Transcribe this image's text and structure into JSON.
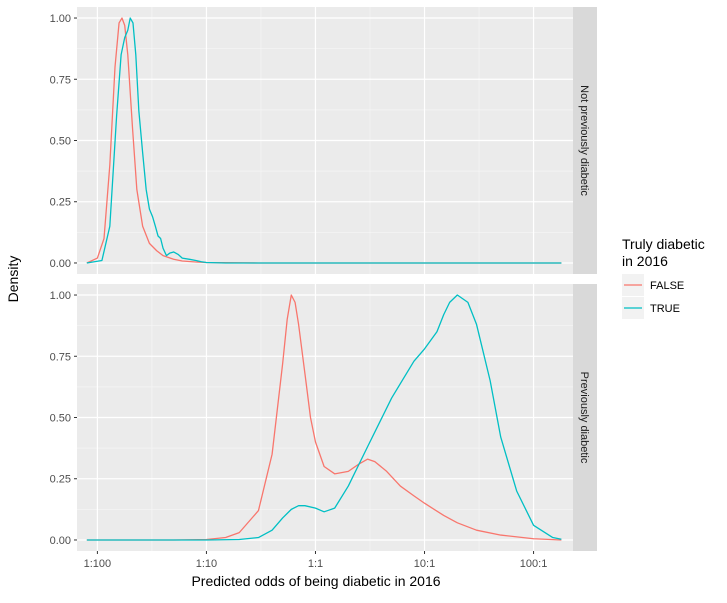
{
  "chart_data": {
    "type": "line",
    "xlabel": "Predicted odds of being diabetic in 2016",
    "ylabel": "Density",
    "x_scale": "log10",
    "x_ticks": [
      {
        "value": 0.01,
        "label": "1:100"
      },
      {
        "value": 0.1,
        "label": "1:10"
      },
      {
        "value": 1,
        "label": "1:1"
      },
      {
        "value": 10,
        "label": "10:1"
      },
      {
        "value": 100,
        "label": "100:1"
      }
    ],
    "xlim": [
      0.0065,
      230
    ],
    "y_ticks": [
      "0.00",
      "0.25",
      "0.50",
      "0.75",
      "1.00"
    ],
    "ylim": [
      -0.045,
      1.045
    ],
    "grid": true,
    "legend": {
      "title_line1": "Truly diabetic",
      "title_line2": "in 2016",
      "position": "right",
      "entries": [
        {
          "label": "FALSE",
          "color": "#F8766D"
        },
        {
          "label": "TRUE",
          "color": "#00BFC4"
        }
      ]
    },
    "panels": [
      {
        "strip": "Not previously diabetic",
        "series": [
          {
            "name": "FALSE",
            "color": "#F8766D",
            "x": [
              0.008,
              0.01,
              0.0115,
              0.013,
              0.0145,
              0.0158,
              0.0168,
              0.0178,
              0.019,
              0.021,
              0.023,
              0.026,
              0.03,
              0.035,
              0.04,
              0.05,
              0.06,
              0.08,
              0.1,
              0.3,
              1,
              10,
              100,
              180
            ],
            "y": [
              0.0,
              0.02,
              0.1,
              0.4,
              0.8,
              0.98,
              1.0,
              0.97,
              0.85,
              0.55,
              0.3,
              0.15,
              0.08,
              0.05,
              0.03,
              0.015,
              0.008,
              0.004,
              0.002,
              0.0,
              0.0,
              0.0,
              0.0,
              0.0
            ]
          },
          {
            "name": "TRUE",
            "color": "#00BFC4",
            "x": [
              0.008,
              0.011,
              0.013,
              0.015,
              0.0165,
              0.0178,
              0.019,
              0.02,
              0.0212,
              0.0225,
              0.024,
              0.026,
              0.028,
              0.03,
              0.032,
              0.034,
              0.036,
              0.038,
              0.04,
              0.043,
              0.046,
              0.05,
              0.055,
              0.06,
              0.07,
              0.08,
              0.09,
              0.1,
              0.15,
              1,
              10,
              100,
              180
            ],
            "y": [
              0.0,
              0.01,
              0.15,
              0.6,
              0.85,
              0.92,
              0.95,
              1.0,
              0.98,
              0.85,
              0.62,
              0.45,
              0.3,
              0.22,
              0.19,
              0.15,
              0.11,
              0.1,
              0.06,
              0.03,
              0.04,
              0.045,
              0.035,
              0.02,
              0.015,
              0.01,
              0.005,
              0.002,
              0.0,
              0.0,
              0.0,
              0.0,
              0.0
            ]
          }
        ]
      },
      {
        "strip": "Previously diabetic",
        "series": [
          {
            "name": "FALSE",
            "color": "#F8766D",
            "x": [
              0.008,
              0.05,
              0.1,
              0.15,
              0.2,
              0.3,
              0.4,
              0.5,
              0.55,
              0.6,
              0.65,
              0.7,
              0.8,
              0.9,
              1.0,
              1.2,
              1.5,
              2.0,
              2.5,
              3.0,
              3.5,
              4.5,
              6.0,
              8.0,
              10,
              15,
              20,
              30,
              50,
              100,
              180
            ],
            "y": [
              0.0,
              0.0,
              0.002,
              0.01,
              0.03,
              0.12,
              0.35,
              0.72,
              0.9,
              1.0,
              0.97,
              0.88,
              0.68,
              0.5,
              0.4,
              0.3,
              0.27,
              0.28,
              0.31,
              0.33,
              0.32,
              0.28,
              0.22,
              0.18,
              0.15,
              0.1,
              0.07,
              0.04,
              0.02,
              0.005,
              0.0
            ]
          },
          {
            "name": "TRUE",
            "color": "#00BFC4",
            "x": [
              0.008,
              0.1,
              0.2,
              0.3,
              0.4,
              0.5,
              0.6,
              0.7,
              0.8,
              1.0,
              1.2,
              1.5,
              2.0,
              3.0,
              5.0,
              8.0,
              10,
              13,
              15,
              17,
              20,
              25,
              30,
              40,
              50,
              70,
              100,
              150,
              180
            ],
            "y": [
              0.0,
              0.0,
              0.002,
              0.01,
              0.04,
              0.09,
              0.125,
              0.14,
              0.14,
              0.13,
              0.115,
              0.13,
              0.22,
              0.38,
              0.58,
              0.73,
              0.78,
              0.85,
              0.92,
              0.97,
              1.0,
              0.97,
              0.88,
              0.65,
              0.42,
              0.2,
              0.06,
              0.01,
              0.003
            ]
          }
        ]
      }
    ]
  }
}
